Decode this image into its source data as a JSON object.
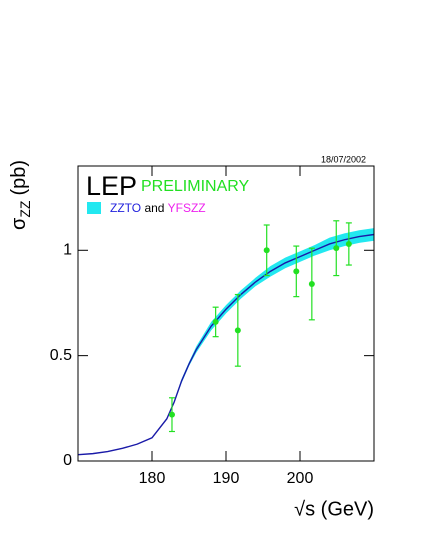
{
  "chart_data": {
    "type": "scatter",
    "date_stamp": "18/07/2002",
    "title": "LEP",
    "subtitle": "PRELIMINARY",
    "legend": {
      "model_a": "ZZTO",
      "joiner": "and",
      "model_b": "YFSZZ",
      "model_a_color": "#2222dd",
      "model_b_color": "#ee22ee",
      "band_color": "#22e8f0"
    },
    "ylabel": {
      "symbol": "σ",
      "subscript": "ZZ",
      "unit": "(pb)"
    },
    "xlabel": "√s (GeV)",
    "xlim": [
      170,
      210
    ],
    "xticks": [
      180,
      190,
      200
    ],
    "ylim": [
      0,
      1.4
    ],
    "yticks": [
      0,
      0.5,
      1
    ],
    "points": {
      "color": "#22e022",
      "x": [
        182.7,
        188.6,
        191.6,
        195.5,
        199.5,
        201.6,
        204.9,
        206.6
      ],
      "values": [
        0.22,
        0.66,
        0.62,
        1.0,
        0.9,
        0.84,
        1.01,
        1.03
      ],
      "errors": [
        0.08,
        0.07,
        0.17,
        0.12,
        0.12,
        0.17,
        0.13,
        0.1
      ]
    },
    "curve": {
      "color": "#1a1aa8",
      "x": [
        170,
        172,
        174,
        176,
        178,
        180,
        182,
        183,
        184,
        185,
        186,
        188,
        190,
        192,
        194,
        196,
        198,
        200,
        202,
        204,
        206,
        208,
        210
      ],
      "values": [
        0.03,
        0.035,
        0.045,
        0.06,
        0.08,
        0.11,
        0.2,
        0.28,
        0.38,
        0.46,
        0.53,
        0.64,
        0.72,
        0.79,
        0.85,
        0.9,
        0.94,
        0.97,
        1.0,
        1.03,
        1.05,
        1.065,
        1.075
      ],
      "band_lower": [
        0.03,
        0.035,
        0.045,
        0.06,
        0.08,
        0.11,
        0.2,
        0.275,
        0.37,
        0.45,
        0.515,
        0.62,
        0.7,
        0.77,
        0.83,
        0.875,
        0.915,
        0.945,
        0.975,
        1.0,
        1.02,
        1.035,
        1.045
      ],
      "band_upper": [
        0.03,
        0.035,
        0.045,
        0.06,
        0.08,
        0.11,
        0.2,
        0.285,
        0.39,
        0.47,
        0.545,
        0.66,
        0.74,
        0.81,
        0.87,
        0.925,
        0.965,
        0.995,
        1.025,
        1.06,
        1.08,
        1.095,
        1.105
      ]
    }
  }
}
